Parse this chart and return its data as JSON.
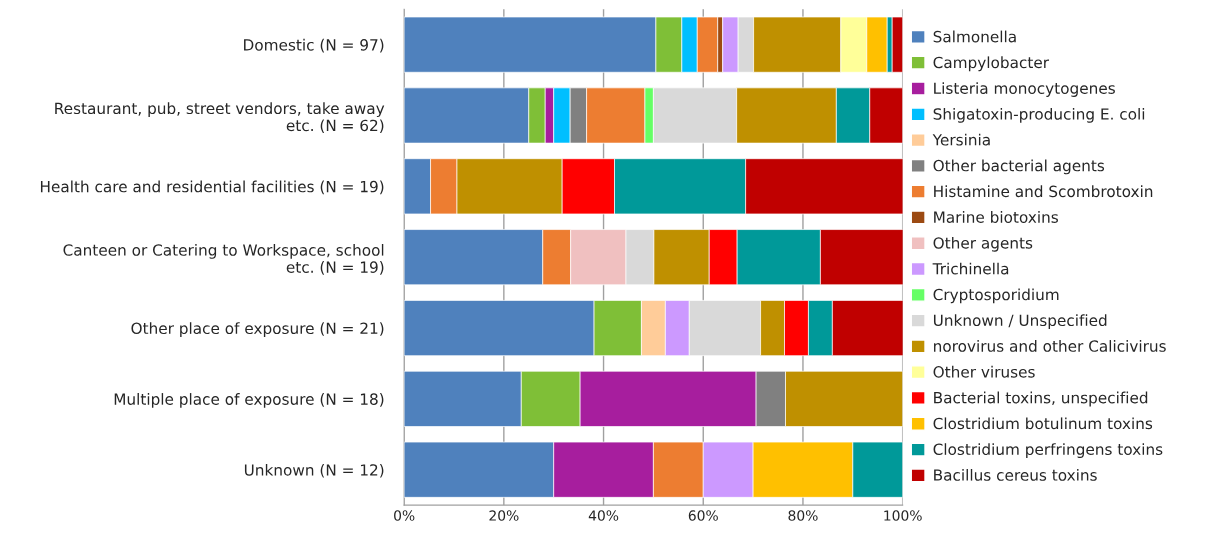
{
  "chart_data": {
    "type": "bar",
    "orientation": "horizontal",
    "stacked": true,
    "grid": "x",
    "legend": "right",
    "categories": [
      "Domestic (N = 97)",
      "Restaurant, pub, street vendors, take away\netc. (N = 62)",
      "Health care and residential facilities (N = 19)",
      "Canteen or Catering to Workspace, school\netc. (N = 19)",
      "Other place of exposure (N = 21)",
      "Multiple place of exposure (N = 18)",
      "Unknown (N = 12)"
    ],
    "xlim": [
      0,
      100
    ],
    "xticks": [
      {
        "value": 0,
        "label": "0%"
      },
      {
        "value": 20,
        "label": "20%"
      },
      {
        "value": 40,
        "label": "40%"
      },
      {
        "value": 60,
        "label": "60%"
      },
      {
        "value": 80,
        "label": "80%"
      },
      {
        "value": 100,
        "label": "100%"
      }
    ],
    "series": [
      {
        "name": "Salmonella",
        "color": "#4f81bd",
        "values": [
          50.5,
          25.0,
          5.3,
          27.8,
          38.1,
          23.5,
          30
        ]
      },
      {
        "name": "Campylobacter",
        "color": "#7fbf37",
        "values": [
          5.2,
          3.3,
          null,
          null,
          9.5,
          11.8,
          null
        ]
      },
      {
        "name": "Listeria monocytogenes",
        "color": "#a71e9e",
        "values": [
          null,
          1.7,
          null,
          null,
          null,
          35.3,
          20
        ]
      },
      {
        "name": "Shigatoxin-producing E. coli",
        "color": "#00bfff",
        "values": [
          3.1,
          3.3,
          null,
          null,
          null,
          null,
          null
        ]
      },
      {
        "name": "Yersinia",
        "color": "#ffcc99",
        "values": [
          null,
          null,
          null,
          null,
          4.8,
          null,
          null
        ]
      },
      {
        "name": "Other bacterial agents",
        "color": "#808080",
        "values": [
          null,
          3.3,
          null,
          null,
          null,
          5.9,
          null
        ]
      },
      {
        "name": "Histamine and Scombrotoxin",
        "color": "#ed7d31",
        "values": [
          4.1,
          11.7,
          5.3,
          5.6,
          null,
          null,
          10
        ]
      },
      {
        "name": "Marine biotoxins",
        "color": "#9c4a12",
        "values": [
          1.0,
          null,
          null,
          null,
          null,
          null,
          null
        ]
      },
      {
        "name": "Other agents",
        "color": "#f0c0c0",
        "values": [
          null,
          null,
          null,
          11.1,
          null,
          null,
          null
        ]
      },
      {
        "name": "Trichinella",
        "color": "#cc99ff",
        "values": [
          3.1,
          null,
          null,
          null,
          4.8,
          null,
          10
        ]
      },
      {
        "name": "Cryptosporidium",
        "color": "#66ff66",
        "values": [
          null,
          1.7,
          null,
          null,
          null,
          null,
          null
        ]
      },
      {
        "name": "Unknown / Unspecified",
        "color": "#d9d9d9",
        "values": [
          3.1,
          16.7,
          null,
          5.6,
          14.3,
          null,
          null
        ]
      },
      {
        "name": "norovirus and other Calicivirus",
        "color": "#bf9000",
        "values": [
          17.5,
          20.0,
          21.1,
          11.1,
          4.8,
          23.5,
          null
        ]
      },
      {
        "name": "Other viruses",
        "color": "#ffff99",
        "values": [
          5.2,
          null,
          null,
          null,
          null,
          null,
          null
        ]
      },
      {
        "name": "Bacterial toxins, unspecified",
        "color": "#ff0000",
        "values": [
          null,
          null,
          10.5,
          5.6,
          4.8,
          null,
          null
        ]
      },
      {
        "name": "Clostridium botulinum toxins",
        "color": "#ffc000",
        "values": [
          4.1,
          null,
          null,
          null,
          null,
          null,
          20
        ]
      },
      {
        "name": "Clostridium perfringens toxins",
        "color": "#009999",
        "values": [
          1.0,
          6.7,
          26.3,
          16.7,
          4.8,
          null,
          10
        ]
      },
      {
        "name": "Bacillus cereus toxins",
        "color": "#c00000",
        "values": [
          2.1,
          6.6,
          31.6,
          16.7,
          14.3,
          null,
          null
        ]
      }
    ]
  }
}
